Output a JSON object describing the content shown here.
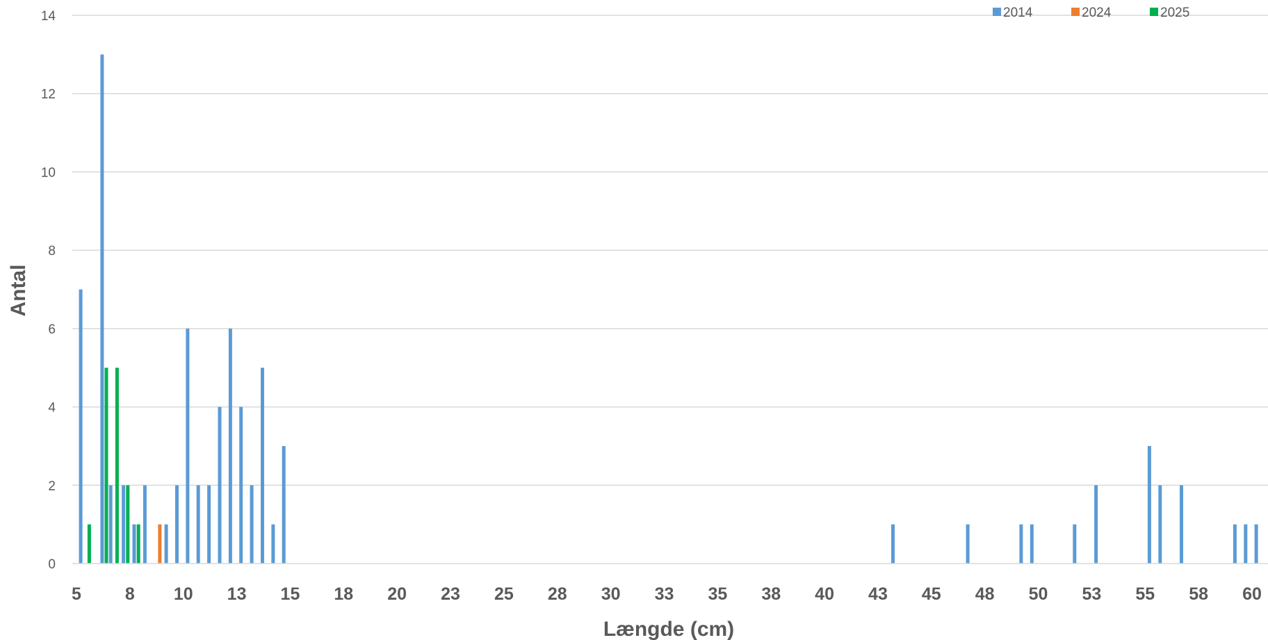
{
  "chart_data": {
    "type": "bar",
    "title": "",
    "xlabel": "Længde (cm)",
    "ylabel": "Antal",
    "xlim": [
      5,
      60
    ],
    "ylim": [
      0,
      14
    ],
    "y_ticks": [
      0,
      2,
      4,
      6,
      8,
      10,
      12,
      14
    ],
    "x_tick_labels": [
      "5",
      "8",
      "10",
      "13",
      "15",
      "18",
      "20",
      "23",
      "25",
      "28",
      "30",
      "33",
      "35",
      "38",
      "40",
      "43",
      "45",
      "48",
      "50",
      "53",
      "55",
      "58",
      "60"
    ],
    "grid": true,
    "legend_position": "top-right",
    "series": [
      {
        "name": "2014",
        "color": "#5B9BD5",
        "points": [
          {
            "x": 5.2,
            "y": 7
          },
          {
            "x": 6.2,
            "y": 13
          },
          {
            "x": 6.6,
            "y": 2
          },
          {
            "x": 7.2,
            "y": 2
          },
          {
            "x": 7.7,
            "y": 1
          },
          {
            "x": 8.2,
            "y": 2
          },
          {
            "x": 9.2,
            "y": 1
          },
          {
            "x": 9.7,
            "y": 2
          },
          {
            "x": 10.2,
            "y": 6
          },
          {
            "x": 10.7,
            "y": 2
          },
          {
            "x": 11.2,
            "y": 2
          },
          {
            "x": 11.7,
            "y": 4
          },
          {
            "x": 12.2,
            "y": 6
          },
          {
            "x": 12.7,
            "y": 4
          },
          {
            "x": 13.2,
            "y": 2
          },
          {
            "x": 13.7,
            "y": 5
          },
          {
            "x": 14.2,
            "y": 1
          },
          {
            "x": 14.7,
            "y": 3
          },
          {
            "x": 43.2,
            "y": 1
          },
          {
            "x": 46.7,
            "y": 1
          },
          {
            "x": 49.2,
            "y": 1
          },
          {
            "x": 49.7,
            "y": 1
          },
          {
            "x": 51.7,
            "y": 1
          },
          {
            "x": 52.7,
            "y": 2
          },
          {
            "x": 55.2,
            "y": 3
          },
          {
            "x": 55.7,
            "y": 2
          },
          {
            "x": 56.7,
            "y": 2
          },
          {
            "x": 59.2,
            "y": 1
          },
          {
            "x": 59.7,
            "y": 1
          },
          {
            "x": 60.2,
            "y": 1
          }
        ]
      },
      {
        "name": "2024",
        "color": "#ED7D31",
        "points": [
          {
            "x": 8.9,
            "y": 1
          }
        ]
      },
      {
        "name": "2025",
        "color": "#00B050",
        "points": [
          {
            "x": 5.6,
            "y": 1
          },
          {
            "x": 6.4,
            "y": 5
          },
          {
            "x": 6.9,
            "y": 5
          },
          {
            "x": 7.4,
            "y": 2
          },
          {
            "x": 7.9,
            "y": 1
          }
        ]
      }
    ]
  }
}
